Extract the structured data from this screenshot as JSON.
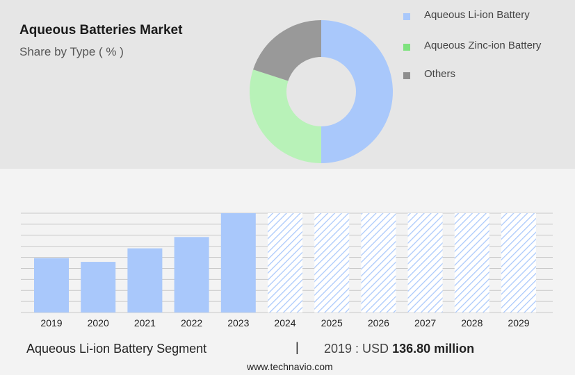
{
  "header": {
    "title": "Aqueous Batteries Market",
    "subtitle": "Share by Type ( % )"
  },
  "donut_legend": [
    {
      "label": "Aqueous Li-ion Battery",
      "color": "#a9c8fb"
    },
    {
      "label": "Aqueous Zinc-ion Battery",
      "color": "#7ee27e"
    },
    {
      "label": "Others",
      "color": "#8e8e8e"
    }
  ],
  "footer": {
    "segment_label": "Aqueous Li-ion Battery Segment",
    "separator": "|",
    "year_label": "2019 : USD",
    "value_label": "136.80 million",
    "website": "www.technavio.com"
  },
  "chart_data": [
    {
      "type": "pie",
      "donut": true,
      "labels": [
        "Aqueous Li-ion Battery",
        "Aqueous Zinc-ion Battery",
        "Others"
      ],
      "values": [
        50,
        30,
        20
      ],
      "colors": [
        "#a9c8fb",
        "#b8f2b8",
        "#999999"
      ]
    },
    {
      "type": "bar",
      "categories": [
        "2019",
        "2020",
        "2021",
        "2022",
        "2023",
        "2024",
        "2025",
        "2026",
        "2027",
        "2028",
        "2029"
      ],
      "values": [
        136.8,
        127.5,
        161.5,
        190,
        250,
        250,
        250,
        250,
        250,
        250,
        250
      ],
      "forecast_from": "2024",
      "ylim": [
        0,
        250
      ],
      "grid": true,
      "color": "#a9c8fb",
      "forecast_pattern": "diagonal-hatch"
    }
  ]
}
